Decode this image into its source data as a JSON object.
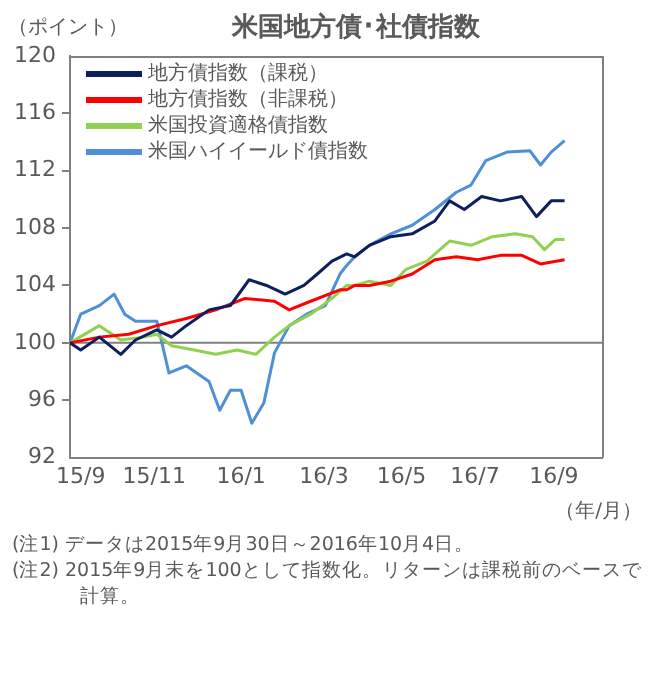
{
  "chart_data": {
    "type": "line",
    "title": "米国地方債･社債指数",
    "ylabel": "（ポイント）",
    "xlabel": "（年/月）",
    "xlim": [
      "2015-09-30",
      "2016-11-01"
    ],
    "ylim": [
      92,
      120
    ],
    "yticks": [
      92,
      96,
      100,
      104,
      108,
      112,
      116,
      120
    ],
    "xticks": [
      {
        "value": "2015-10-08",
        "label": "15/9"
      },
      {
        "value": "2015-12-02",
        "label": "15/11"
      },
      {
        "value": "2016-02-05",
        "label": "16/1"
      },
      {
        "value": "2016-04-07",
        "label": "16/3"
      },
      {
        "value": "2016-06-04",
        "label": "16/5"
      },
      {
        "value": "2016-07-29",
        "label": "16/7"
      },
      {
        "value": "2016-09-26",
        "label": "16/9"
      }
    ],
    "grid": false,
    "legend": "top left",
    "marker": "none",
    "line_style": "solid",
    "ref_lines": [
      {
        "axis": "y",
        "value": 100,
        "color": "#808080"
      }
    ],
    "series": [
      {
        "name": "地方債指数（課税）",
        "color": "#0d1f5c",
        "x": [
          "2015-09-30",
          "2015-10-08",
          "2015-10-22",
          "2015-11-07",
          "2015-11-18",
          "2015-12-04",
          "2015-12-15",
          "2015-12-26",
          "2016-01-12",
          "2016-01-28",
          "2016-02-11",
          "2016-02-24",
          "2016-03-09",
          "2016-03-23",
          "2016-04-02",
          "2016-04-13",
          "2016-04-24",
          "2016-04-30",
          "2016-05-11",
          "2016-05-27",
          "2016-06-12",
          "2016-06-29",
          "2016-07-10",
          "2016-07-21",
          "2016-08-03",
          "2016-08-17",
          "2016-09-02",
          "2016-09-13",
          "2016-09-24",
          "2016-10-04"
        ],
        "values": [
          100,
          99.5,
          100.4,
          99.2,
          100.2,
          100.9,
          100.4,
          101.2,
          102.3,
          102.6,
          104.4,
          104,
          103.4,
          104,
          104.8,
          105.7,
          106.2,
          106,
          106.8,
          107.4,
          107.6,
          108.5,
          109.9,
          109.3,
          110.2,
          109.9,
          110.2,
          108.8,
          109.9,
          109.9
        ]
      },
      {
        "name": "地方債指数（非課税）",
        "color": "#ff0000",
        "x": [
          "2015-09-30",
          "2015-10-22",
          "2015-11-13",
          "2015-12-04",
          "2015-12-26",
          "2016-01-17",
          "2016-02-08",
          "2016-03-01",
          "2016-03-12",
          "2016-03-28",
          "2016-04-19",
          "2016-04-24",
          "2016-04-30",
          "2016-05-11",
          "2016-05-27",
          "2016-06-12",
          "2016-06-29",
          "2016-07-15",
          "2016-07-31",
          "2016-08-17",
          "2016-09-02",
          "2016-09-16",
          "2016-10-04"
        ],
        "values": [
          100,
          100.4,
          100.6,
          101.2,
          101.7,
          102.3,
          103.1,
          102.9,
          102.3,
          102.9,
          103.7,
          103.7,
          104,
          104,
          104.3,
          104.8,
          105.8,
          106,
          105.8,
          106.1,
          106.1,
          105.5,
          105.8
        ]
      },
      {
        "name": "米国投資適格債指数",
        "color": "#92d050",
        "x": [
          "2015-09-30",
          "2015-10-22",
          "2015-11-07",
          "2015-11-24",
          "2015-12-04",
          "2015-12-15",
          "2016-01-01",
          "2016-01-17",
          "2016-02-02",
          "2016-02-16",
          "2016-03-01",
          "2016-03-12",
          "2016-03-28",
          "2016-04-13",
          "2016-04-24",
          "2016-04-30",
          "2016-05-11",
          "2016-05-27",
          "2016-06-07",
          "2016-06-23",
          "2016-07-10",
          "2016-07-26",
          "2016-08-11",
          "2016-08-28",
          "2016-09-10",
          "2016-09-19",
          "2016-09-27",
          "2016-10-04"
        ],
        "values": [
          100,
          101.2,
          100.2,
          100.4,
          100.6,
          99.8,
          99.5,
          99.2,
          99.5,
          99.2,
          100.4,
          101.2,
          102,
          103.1,
          104,
          104,
          104.3,
          104,
          105.1,
          105.7,
          107.1,
          106.8,
          107.4,
          107.6,
          107.4,
          106.5,
          107.2,
          107.2
        ]
      },
      {
        "name": "米国ハイイールド債指数",
        "color": "#4f8fd8",
        "x": [
          "2015-09-30",
          "2015-10-08",
          "2015-10-22",
          "2015-11-02",
          "2015-11-10",
          "2015-11-18",
          "2015-12-04",
          "2015-12-13",
          "2015-12-26",
          "2016-01-12",
          "2016-01-20",
          "2016-01-28",
          "2016-02-05",
          "2016-02-13",
          "2016-02-22",
          "2016-03-01",
          "2016-03-12",
          "2016-03-25",
          "2016-04-08",
          "2016-04-19",
          "2016-04-24",
          "2016-04-30",
          "2016-05-11",
          "2016-05-27",
          "2016-06-12",
          "2016-06-29",
          "2016-07-15",
          "2016-07-26",
          "2016-08-06",
          "2016-08-22",
          "2016-09-08",
          "2016-09-16",
          "2016-09-24",
          "2016-10-04"
        ],
        "values": [
          100,
          102,
          102.6,
          103.4,
          102,
          101.5,
          101.5,
          97.9,
          98.4,
          97.3,
          95.3,
          96.7,
          96.7,
          94.4,
          95.8,
          99.3,
          101.2,
          102,
          102.6,
          104.8,
          105.4,
          106,
          106.8,
          107.6,
          108.2,
          109.3,
          110.5,
          111,
          112.7,
          113.3,
          113.4,
          112.4,
          113.3,
          114.1
        ]
      }
    ],
    "annotations": [
      "(注1) データは2015年9月30日～2016年10月4日。",
      "(注2) 2015年9月末を100として指数化。リターンは課税前のベースで計算。"
    ]
  }
}
